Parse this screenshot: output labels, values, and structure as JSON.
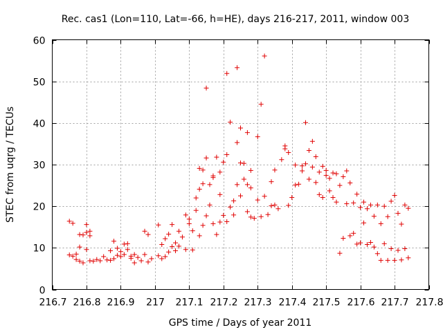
{
  "chart_data": {
    "type": "scatter",
    "title": "Rec. cas1 (Lon=110, Lat=-66, h=HE), days 216-217, 2011, window 003",
    "xlabel": "GPS time / Days of year 2011",
    "ylabel": "STEC from uqrg / TECUs",
    "xlim": [
      216.7,
      217.8
    ],
    "ylim": [
      0,
      60
    ],
    "x_ticks": [
      "216.7",
      "216.8",
      "216.9",
      "217",
      "217.1",
      "217.2",
      "217.3",
      "217.4",
      "217.5",
      "217.6",
      "217.7",
      "217.8"
    ],
    "y_ticks": [
      "0",
      "10",
      "20",
      "30",
      "40",
      "50",
      "60"
    ],
    "grid": true,
    "marker": "+",
    "color": "#e00000",
    "series": [
      {
        "points": [
          [
            216.75,
            16.4
          ],
          [
            216.76,
            15.9
          ],
          [
            216.76,
            8.0
          ],
          [
            216.77,
            7.2
          ],
          [
            216.78,
            10.2
          ],
          [
            216.78,
            13.2
          ],
          [
            216.79,
            13.1
          ],
          [
            216.8,
            13.7
          ],
          [
            216.8,
            15.6
          ],
          [
            216.81,
            14.0
          ],
          [
            216.81,
            12.9
          ],
          [
            216.75,
            8.3
          ],
          [
            216.77,
            8.5
          ],
          [
            216.78,
            6.8
          ],
          [
            216.79,
            6.4
          ],
          [
            216.8,
            9.6
          ],
          [
            216.81,
            6.9
          ],
          [
            216.82,
            6.8
          ],
          [
            216.83,
            7.2
          ],
          [
            216.84,
            6.9
          ],
          [
            216.85,
            7.9
          ],
          [
            216.86,
            7.1
          ],
          [
            216.87,
            7.0
          ],
          [
            216.87,
            9.3
          ],
          [
            216.88,
            7.4
          ],
          [
            216.88,
            11.6
          ],
          [
            216.89,
            8.2
          ],
          [
            216.89,
            9.9
          ],
          [
            216.9,
            7.9
          ],
          [
            216.9,
            9.1
          ],
          [
            216.91,
            8.4
          ],
          [
            216.91,
            10.9
          ],
          [
            216.92,
            11.0
          ],
          [
            216.92,
            9.6
          ],
          [
            216.93,
            7.5
          ],
          [
            216.93,
            8.0
          ],
          [
            216.94,
            6.4
          ],
          [
            216.94,
            8.4
          ],
          [
            216.95,
            7.7
          ],
          [
            216.96,
            6.9
          ],
          [
            216.97,
            8.4
          ],
          [
            216.97,
            14.0
          ],
          [
            216.98,
            13.2
          ],
          [
            216.98,
            6.6
          ],
          [
            216.99,
            7.4
          ],
          [
            217.01,
            8.1
          ],
          [
            217.01,
            15.5
          ],
          [
            217.02,
            7.4
          ],
          [
            217.02,
            10.8
          ],
          [
            217.03,
            7.9
          ],
          [
            217.03,
            12.2
          ],
          [
            217.04,
            9.0
          ],
          [
            217.04,
            13.3
          ],
          [
            217.05,
            15.6
          ],
          [
            217.05,
            10.3
          ],
          [
            217.06,
            11.2
          ],
          [
            217.06,
            9.3
          ],
          [
            217.07,
            14.0
          ],
          [
            217.07,
            10.4
          ],
          [
            217.08,
            12.6
          ],
          [
            217.09,
            9.6
          ],
          [
            217.09,
            17.9
          ],
          [
            217.1,
            15.8
          ],
          [
            217.1,
            16.9
          ],
          [
            217.11,
            9.5
          ],
          [
            217.11,
            14.1
          ],
          [
            217.12,
            22.0
          ],
          [
            217.12,
            19.0
          ],
          [
            217.13,
            12.9
          ],
          [
            217.13,
            29.1
          ],
          [
            217.13,
            24.1
          ],
          [
            217.14,
            15.4
          ],
          [
            217.14,
            25.4
          ],
          [
            217.14,
            28.7
          ],
          [
            217.15,
            17.7
          ],
          [
            217.15,
            31.6
          ],
          [
            217.15,
            48.4
          ],
          [
            217.16,
            20.3
          ],
          [
            217.16,
            25.2
          ],
          [
            217.17,
            15.8
          ],
          [
            217.17,
            26.9
          ],
          [
            217.17,
            27.3
          ],
          [
            217.18,
            13.2
          ],
          [
            217.18,
            31.8
          ],
          [
            217.19,
            16.2
          ],
          [
            217.19,
            22.8
          ],
          [
            217.19,
            28.2
          ],
          [
            217.2,
            30.6
          ],
          [
            217.2,
            17.8
          ],
          [
            217.21,
            16.3
          ],
          [
            217.21,
            32.4
          ],
          [
            217.21,
            51.9
          ],
          [
            217.22,
            40.2
          ],
          [
            217.22,
            19.8
          ],
          [
            217.23,
            17.9
          ],
          [
            217.23,
            21.3
          ],
          [
            217.24,
            35.3
          ],
          [
            217.24,
            25.2
          ],
          [
            217.24,
            53.3
          ],
          [
            217.25,
            30.4
          ],
          [
            217.25,
            38.8
          ],
          [
            217.25,
            22.5
          ],
          [
            217.26,
            30.3
          ],
          [
            217.26,
            26.5
          ],
          [
            217.27,
            37.7
          ],
          [
            217.27,
            25.2
          ],
          [
            217.27,
            18.7
          ],
          [
            217.28,
            17.4
          ],
          [
            217.28,
            28.6
          ],
          [
            217.28,
            24.4
          ],
          [
            217.29,
            17.1
          ],
          [
            217.3,
            36.7
          ],
          [
            217.3,
            21.5
          ],
          [
            217.31,
            44.5
          ],
          [
            217.31,
            17.5
          ],
          [
            217.32,
            22.4
          ],
          [
            217.32,
            56.1
          ],
          [
            217.33,
            18.0
          ],
          [
            217.34,
            25.9
          ],
          [
            217.34,
            20.1
          ],
          [
            217.35,
            28.7
          ],
          [
            217.35,
            20.3
          ],
          [
            217.36,
            19.4
          ],
          [
            217.37,
            31.2
          ],
          [
            217.38,
            34.5
          ],
          [
            217.38,
            33.8
          ],
          [
            217.39,
            20.2
          ],
          [
            217.39,
            32.9
          ],
          [
            217.4,
            22.1
          ],
          [
            217.41,
            29.9
          ],
          [
            217.41,
            25.1
          ],
          [
            217.42,
            25.3
          ],
          [
            217.43,
            28.5
          ],
          [
            217.43,
            29.7
          ],
          [
            217.44,
            30.2
          ],
          [
            217.44,
            40.1
          ],
          [
            217.45,
            26.5
          ],
          [
            217.45,
            33.4
          ],
          [
            217.46,
            29.4
          ],
          [
            217.46,
            35.6
          ],
          [
            217.47,
            25.7
          ],
          [
            217.47,
            31.9
          ],
          [
            217.48,
            28.2
          ],
          [
            217.48,
            22.8
          ],
          [
            217.49,
            29.6
          ],
          [
            217.49,
            22.1
          ],
          [
            217.5,
            28.6
          ],
          [
            217.5,
            27.4
          ],
          [
            217.51,
            23.7
          ],
          [
            217.51,
            26.7
          ],
          [
            217.52,
            28.0
          ],
          [
            217.52,
            22.1
          ],
          [
            217.53,
            27.8
          ],
          [
            217.53,
            21.0
          ],
          [
            217.54,
            25.0
          ],
          [
            217.54,
            8.7
          ],
          [
            217.55,
            27.1
          ],
          [
            217.55,
            12.3
          ],
          [
            217.56,
            28.5
          ],
          [
            217.56,
            20.6
          ],
          [
            217.57,
            25.6
          ],
          [
            217.57,
            12.9
          ],
          [
            217.58,
            20.8
          ],
          [
            217.58,
            13.5
          ],
          [
            217.59,
            22.9
          ],
          [
            217.59,
            10.9
          ],
          [
            217.6,
            19.7
          ],
          [
            217.6,
            11.2
          ],
          [
            217.61,
            21.0
          ],
          [
            217.61,
            16.0
          ],
          [
            217.62,
            10.8
          ],
          [
            217.62,
            19.4
          ],
          [
            217.63,
            11.3
          ],
          [
            217.63,
            20.3
          ],
          [
            217.64,
            10.2
          ],
          [
            217.64,
            17.6
          ],
          [
            217.65,
            20.3
          ],
          [
            217.65,
            8.6
          ],
          [
            217.66,
            15.8
          ],
          [
            217.66,
            7.0
          ],
          [
            217.67,
            20.0
          ],
          [
            217.67,
            11.0
          ],
          [
            217.68,
            7.0
          ],
          [
            217.68,
            17.5
          ],
          [
            217.69,
            21.2
          ],
          [
            217.69,
            9.8
          ],
          [
            217.7,
            22.6
          ],
          [
            217.7,
            7.0
          ],
          [
            217.71,
            18.3
          ],
          [
            217.71,
            9.4
          ],
          [
            217.72,
            7.1
          ],
          [
            217.72,
            15.7
          ],
          [
            217.73,
            20.3
          ],
          [
            217.73,
            9.8
          ],
          [
            217.74,
            19.5
          ],
          [
            217.74,
            7.6
          ]
        ]
      }
    ]
  }
}
